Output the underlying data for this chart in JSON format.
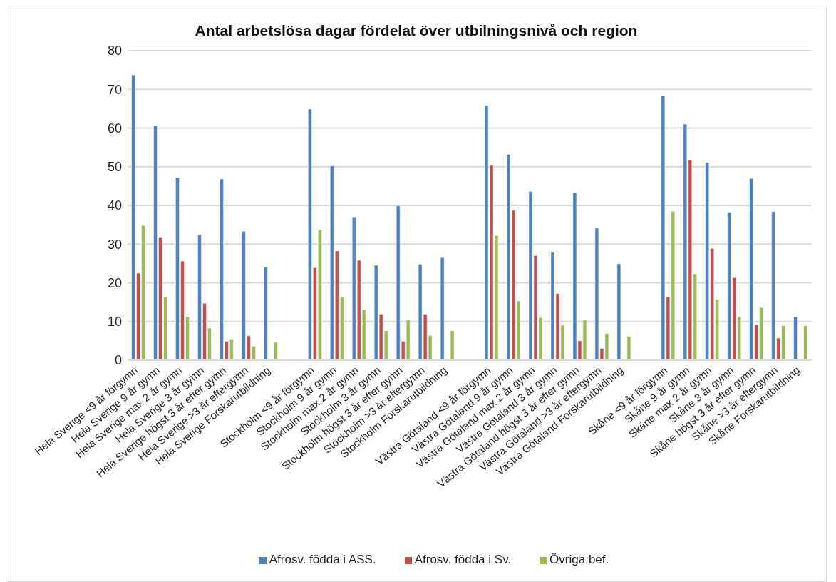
{
  "chart_data": {
    "type": "bar",
    "title": "Antal arbetslösa dagar fördelat över utbilningsnivå och region",
    "categories": [
      "Hela Sverige <9 år förgymn",
      "Hela Sverige 9 år gymn",
      "Hela Sverige max 2 år gymn",
      "Hela Sverige 3 år gymn",
      "Hela Sverige högst 3 år efter gymn",
      "Hela Sverige >3 år eftergymn",
      "Hela Sverige Forskarutbildning",
      null,
      "Stockholm <9 år förgymn",
      "Stockholm 9 år gymn",
      "Stockholm max 2 år gymn",
      "Stockholm 3 år gymn",
      "Stockholm högst 3 år efter gymn",
      "Stockholm >3 år eftergymn",
      "Stockholm Forskarutbildning",
      null,
      "Västra Götaland <9 år förgymn",
      "Västra Götaland 9 år gymn",
      "Västra Götaland max 2 år gymn",
      "Västra Götaland 3 år gymn",
      "Västra Götaland högst 3 år efter gymn",
      "Västra Götaland >3 år eftergymn",
      "Västra Götaland Forskarutbildning",
      null,
      "Skåne <9 år förgymn",
      "Skåne 9 år gymn",
      "Skåne max 2 år gymn",
      "Skåne 3 år gymn",
      "Skåne högst 3 år efter gymn",
      "Skåne >3 år eftergymn",
      "Skåne Forskarutbildning"
    ],
    "series": [
      {
        "name": "Afrosv. födda i ASS.",
        "color": "#4f81bd",
        "values": [
          73.7,
          60.6,
          47.2,
          32.4,
          46.8,
          33.3,
          24.0,
          null,
          64.9,
          50.2,
          37.0,
          24.5,
          39.9,
          24.8,
          26.5,
          null,
          65.8,
          53.2,
          43.6,
          27.9,
          43.3,
          34.1,
          24.9,
          null,
          68.3,
          61.0,
          51.1,
          38.2,
          46.9,
          38.4,
          11.2
        ]
      },
      {
        "name": "Afrosv. födda i Sv.",
        "color": "#c0504d",
        "values": [
          22.5,
          31.8,
          25.6,
          14.7,
          4.9,
          6.3,
          null,
          null,
          23.9,
          28.2,
          25.8,
          11.9,
          4.9,
          11.9,
          null,
          null,
          50.3,
          38.7,
          27.0,
          17.2,
          5.0,
          3.0,
          null,
          null,
          16.4,
          51.8,
          28.9,
          21.3,
          9.1,
          5.7,
          null
        ]
      },
      {
        "name": "Övriga bef.",
        "color": "#9bbb59",
        "values": [
          34.8,
          16.4,
          11.2,
          8.3,
          5.3,
          3.6,
          4.6,
          null,
          33.7,
          16.4,
          13.0,
          7.6,
          10.4,
          6.4,
          7.6,
          null,
          32.2,
          15.3,
          11.0,
          9.0,
          10.4,
          6.9,
          6.2,
          null,
          38.5,
          22.3,
          15.7,
          11.2,
          13.6,
          8.9,
          8.9
        ]
      }
    ],
    "ylim": [
      0,
      80
    ],
    "yticks": [
      0,
      10,
      20,
      30,
      40,
      50,
      60,
      70,
      80
    ],
    "grid": "y",
    "legend": "bottom"
  }
}
